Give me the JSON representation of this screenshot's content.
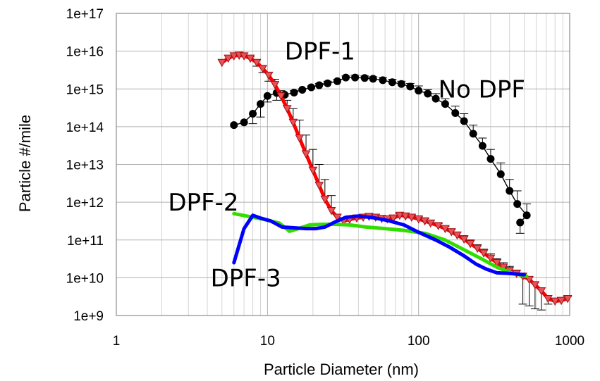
{
  "chart_data": {
    "type": "line",
    "xlabel": "Particle Diameter (nm)",
    "ylabel": "Particle #/mile",
    "xscale": "log",
    "yscale": "log",
    "xlim": [
      1,
      1000
    ],
    "ylim": [
      1000000000.0,
      1e+17
    ],
    "grid": true,
    "x_ticks": [
      "1",
      "10",
      "100",
      "1000"
    ],
    "y_ticks": [
      "1e+9",
      "1e+10",
      "1e+11",
      "1e+12",
      "1e+13",
      "1e+14",
      "1e+15",
      "1e+16",
      "1e+17"
    ],
    "series": [
      {
        "name": "No DPF",
        "color": "#000000",
        "marker": "circle",
        "points": [
          [
            6.0,
            110000000000000.0
          ],
          [
            7.0,
            130000000000000.0
          ],
          [
            8.0,
            220000000000000.0
          ],
          [
            9.0,
            400000000000000.0
          ],
          [
            10.0,
            650000000000000.0
          ],
          [
            11.5,
            780000000000000.0
          ],
          [
            13.0,
            700000000000000.0
          ],
          [
            15.0,
            800000000000000.0
          ],
          [
            17.0,
            950000000000000.0
          ],
          [
            19.5,
            1100000000000000.0
          ],
          [
            22.0,
            1250000000000000.0
          ],
          [
            25.0,
            1400000000000000.0
          ],
          [
            29.0,
            1600000000000000.0
          ],
          [
            33.0,
            2000000000000000.0
          ],
          [
            38.0,
            2000000000000000.0
          ],
          [
            44.0,
            1950000000000000.0
          ],
          [
            50.0,
            1850000000000000.0
          ],
          [
            58.0,
            1700000000000000.0
          ],
          [
            67.0,
            1500000000000000.0
          ],
          [
            77.0,
            1350000000000000.0
          ],
          [
            88.0,
            1150000000000000.0
          ],
          [
            100.0,
            900000000000000.0
          ],
          [
            115.0,
            750000000000000.0
          ],
          [
            130.0,
            550000000000000.0
          ],
          [
            150.0,
            400000000000000.0
          ],
          [
            175.0,
            230000000000000.0
          ],
          [
            200.0,
            140000000000000.0
          ],
          [
            230.0,
            65000000000000.0
          ],
          [
            265.0,
            31000000000000.0
          ],
          [
            300.0,
            14000000000000.0
          ],
          [
            350.0,
            5500000000000.0
          ],
          [
            400.0,
            2000000000000.0
          ],
          [
            450.0,
            900000000000.0
          ],
          [
            520.0,
            450000000000.0
          ],
          [
            470.0,
            290000000000.0
          ]
        ]
      },
      {
        "name": "DPF-1",
        "color": "#ff0000",
        "marker": "triangle-down",
        "points": [
          [
            5.0,
            5000000000000000.0
          ],
          [
            5.5,
            6500000000000000.0
          ],
          [
            6.0,
            7500000000000000.0
          ],
          [
            6.5,
            7800000000000000.0
          ],
          [
            7.0,
            7500000000000000.0
          ],
          [
            7.7,
            6500000000000000.0
          ],
          [
            8.5,
            5000000000000000.0
          ],
          [
            9.3,
            3500000000000000.0
          ],
          [
            10.2,
            2300000000000000.0
          ],
          [
            11.2,
            1300000000000000.0
          ],
          [
            12.3,
            650000000000000.0
          ],
          [
            13.5,
            300000000000000.0
          ],
          [
            14.8,
            130000000000000.0
          ],
          [
            16.3,
            50000000000000.0
          ],
          [
            18.0,
            19000000000000.0
          ],
          [
            20.0,
            7000000000000.0
          ],
          [
            22.0,
            2800000000000.0
          ],
          [
            24.0,
            1200000000000.0
          ],
          [
            26.5,
            600000000000.0
          ],
          [
            29.0,
            400000000000.0
          ],
          [
            32.0,
            320000000000.0
          ],
          [
            35.0,
            350000000000.0
          ],
          [
            39.0,
            380000000000.0
          ],
          [
            43.0,
            400000000000.0
          ],
          [
            47.0,
            420000000000.0
          ],
          [
            52.0,
            400000000000.0
          ],
          [
            57.0,
            370000000000.0
          ],
          [
            62.0,
            360000000000.0
          ],
          [
            68.0,
            380000000000.0
          ],
          [
            75.0,
            450000000000.0
          ],
          [
            82.0,
            430000000000.0
          ],
          [
            90.0,
            400000000000.0
          ],
          [
            100.0,
            360000000000.0
          ],
          [
            110.0,
            320000000000.0
          ],
          [
            120.0,
            280000000000.0
          ],
          [
            135.0,
            240000000000.0
          ],
          [
            150.0,
            200000000000.0
          ],
          [
            165.0,
            165000000000.0
          ],
          [
            180.0,
            135000000000.0
          ],
          [
            200.0,
            105000000000.0
          ],
          [
            220.0,
            80000000000.0
          ],
          [
            245.0,
            60000000000.0
          ],
          [
            270.0,
            45000000000.0
          ],
          [
            300.0,
            33000000000.0
          ],
          [
            330.0,
            25000000000.0
          ],
          [
            365.0,
            19000000000.0
          ],
          [
            400.0,
            15500000000.0
          ],
          [
            445.0,
            13000000000.0
          ],
          [
            490.0,
            11000000000.0
          ],
          [
            540.0,
            9000000000.0
          ],
          [
            590.0,
            6500000000.0
          ],
          [
            650.0,
            4500000000.0
          ],
          [
            720.0,
            2800000000.0
          ],
          [
            800.0,
            2400000000.0
          ],
          [
            880.0,
            2500000000.0
          ],
          [
            970.0,
            2800000000.0
          ]
        ]
      },
      {
        "name": "DPF-2",
        "color": "#33dd00",
        "marker": "none",
        "points": [
          [
            6.0,
            500000000000.0
          ],
          [
            7.5,
            420000000000.0
          ],
          [
            9.5,
            350000000000.0
          ],
          [
            12.0,
            280000000000.0
          ],
          [
            14.0,
            170000000000.0
          ],
          [
            16.0,
            200000000000.0
          ],
          [
            19.0,
            250000000000.0
          ],
          [
            23.0,
            260000000000.0
          ],
          [
            28.0,
            260000000000.0
          ],
          [
            35.0,
            250000000000.0
          ],
          [
            45.0,
            220000000000.0
          ],
          [
            60.0,
            200000000000.0
          ],
          [
            80.0,
            180000000000.0
          ],
          [
            110.0,
            150000000000.0
          ],
          [
            150.0,
            100000000000.0
          ],
          [
            200.0,
            55000000000.0
          ],
          [
            260.0,
            32000000000.0
          ],
          [
            330.0,
            19000000000.0
          ],
          [
            420.0,
            13000000000.0
          ],
          [
            520.0,
            11000000000.0
          ]
        ]
      },
      {
        "name": "DPF-3",
        "color": "#0000ff",
        "marker": "none",
        "points": [
          [
            6.0,
            25000000000.0
          ],
          [
            7.0,
            200000000000.0
          ],
          [
            8.0,
            450000000000.0
          ],
          [
            9.0,
            380000000000.0
          ],
          [
            10.5,
            320000000000.0
          ],
          [
            12.5,
            220000000000.0
          ],
          [
            15.0,
            210000000000.0
          ],
          [
            18.0,
            200000000000.0
          ],
          [
            21.0,
            200000000000.0
          ],
          [
            24.0,
            220000000000.0
          ],
          [
            28.0,
            300000000000.0
          ],
          [
            33.0,
            400000000000.0
          ],
          [
            40.0,
            430000000000.0
          ],
          [
            50.0,
            390000000000.0
          ],
          [
            62.0,
            330000000000.0
          ],
          [
            80.0,
            250000000000.0
          ],
          [
            100.0,
            160000000000.0
          ],
          [
            130.0,
            100000000000.0
          ],
          [
            160.0,
            65000000000.0
          ],
          [
            200.0,
            38000000000.0
          ],
          [
            240.0,
            23000000000.0
          ],
          [
            280.0,
            17000000000.0
          ],
          [
            330.0,
            13500000000.0
          ],
          [
            400.0,
            13000000000.0
          ],
          [
            500.0,
            12000000000.0
          ]
        ]
      }
    ],
    "error_bars": {
      "No DPF": [
        [
          8.0,
          120000000000000.0
        ],
        [
          9.0,
          180000000000000.0
        ],
        [
          10.0,
          450000000000000.0
        ],
        [
          11.5,
          500000000000000.0
        ],
        [
          13.0,
          650000000000000.0
        ],
        [
          15.0,
          900000000000000.0
        ],
        [
          17.0,
          1000000000000000.0
        ],
        [
          19.5,
          1200000000000000.0
        ],
        [
          22.0,
          1400000000000000.0
        ],
        [
          25.0,
          1600000000000000.0
        ],
        [
          29.0,
          1800000000000000.0
        ],
        [
          33.0,
          2200000000000000.0
        ],
        [
          38.0,
          2300000000000000.0
        ],
        [
          44.0,
          2200000000000000.0
        ],
        [
          50.0,
          2100000000000000.0
        ],
        [
          58.0,
          2000000000000000.0
        ],
        [
          67.0,
          1800000000000000.0
        ],
        [
          77.0,
          1600000000000000.0
        ],
        [
          88.0,
          1400000000000000.0
        ],
        [
          100.0,
          1200000000000000.0
        ],
        [
          115.0,
          950000000000000.0
        ],
        [
          130.0,
          750000000000000.0
        ],
        [
          150.0,
          550000000000000.0
        ],
        [
          175.0,
          350000000000000.0
        ],
        [
          200.0,
          220000000000000.0
        ],
        [
          230.0,
          110000000000000.0
        ],
        [
          265.0,
          50000000000000.0
        ],
        [
          300.0,
          25000000000000.0
        ],
        [
          350.0,
          11000000000000.0
        ],
        [
          400.0,
          4000000000000.0
        ],
        [
          450.0,
          2000000000000.0
        ],
        [
          520.0,
          900000000000.0
        ],
        [
          470.0,
          150000000000.0
        ]
      ],
      "DPF-1": [
        [
          7.7,
          7000000000000000.0
        ],
        [
          8.5,
          4000000000000000.0
        ],
        [
          9.3,
          2700000000000000.0
        ],
        [
          10.2,
          1600000000000000.0
        ],
        [
          11.2,
          1800000000000000.0
        ],
        [
          12.3,
          900000000000000.0
        ],
        [
          13.5,
          500000000000000.0
        ],
        [
          14.8,
          300000000000000.0
        ],
        [
          16.3,
          150000000000000.0
        ],
        [
          18.0,
          60000000000000.0
        ],
        [
          20.0,
          25000000000000.0
        ],
        [
          22.0,
          10000000000000.0
        ],
        [
          24.0,
          4000000000000.0
        ],
        [
          26.5,
          1500000000000.0
        ],
        [
          75.0,
          500000000000.0
        ],
        [
          82.0,
          480000000000.0
        ],
        [
          90.0,
          450000000000.0
        ],
        [
          100.0,
          410000000000.0
        ],
        [
          110.0,
          370000000000.0
        ],
        [
          120.0,
          320000000000.0
        ],
        [
          135.0,
          270000000000.0
        ],
        [
          150.0,
          230000000000.0
        ],
        [
          165.0,
          190000000000.0
        ],
        [
          180.0,
          160000000000.0
        ],
        [
          200.0,
          130000000000.0
        ],
        [
          220.0,
          100000000000.0
        ],
        [
          245.0,
          75000000000.0
        ],
        [
          270.0,
          57000000000.0
        ],
        [
          300.0,
          43000000000.0
        ],
        [
          330.0,
          32000000000.0
        ],
        [
          365.0,
          25000000000.0
        ],
        [
          400.0,
          20000000000.0
        ],
        [
          445.0,
          16000000000.0
        ],
        [
          490.0,
          2000000000.0
        ],
        [
          540.0,
          1800000000.0
        ],
        [
          590.0,
          1500000000.0
        ],
        [
          650.0,
          1400000000.0
        ],
        [
          720.0,
          2000000000.0
        ],
        [
          880.0,
          3000000000.0
        ],
        [
          970.0,
          3200000000.0
        ]
      ]
    },
    "annotations": [
      {
        "text": "DPF-1",
        "x": 13,
        "y": 1e+16
      },
      {
        "text": "No DPF",
        "x": 135,
        "y": 1000000000000000.0
      },
      {
        "text": "DPF-2",
        "x": 2.2,
        "y": 1000000000000.0
      },
      {
        "text": "DPF-3",
        "x": 4.2,
        "y": 10000000000.0
      }
    ]
  }
}
